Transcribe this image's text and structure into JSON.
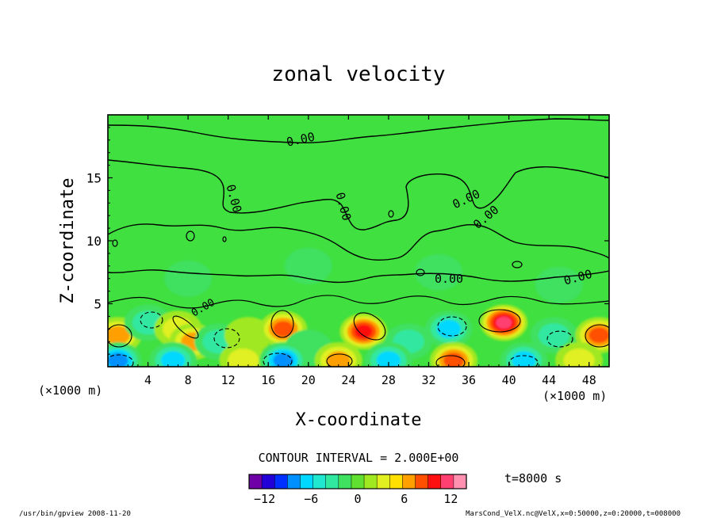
{
  "chart_data": {
    "type": "heatmap",
    "title": "zonal velocity",
    "xlabel": "X-coordinate",
    "ylabel": "Z-coordinate",
    "xunit_left": "(×1000 m)",
    "xunit_right": "(×1000 m)",
    "xlim": [
      0,
      50
    ],
    "ylim": [
      0,
      20
    ],
    "xticks": [
      4,
      8,
      12,
      16,
      20,
      24,
      28,
      32,
      36,
      40,
      44,
      48
    ],
    "yticks": [
      5,
      10,
      15
    ],
    "contour_interval_text": "CONTOUR INTERVAL = 2.000E+00",
    "contour_labels": [
      "0.00",
      "0.00",
      "0.00",
      "0.00",
      "0.00",
      "0.00",
      "0.00",
      "0.00"
    ],
    "time_label": "t=8000 s",
    "colorbar": {
      "min": -14,
      "max": 14,
      "ticks": [
        -12,
        -6,
        0,
        6,
        12
      ],
      "colors": [
        "#6f00a8",
        "#2200d8",
        "#0030ff",
        "#0090ff",
        "#00d8ff",
        "#20e8d0",
        "#30e8a0",
        "#40e060",
        "#60e030",
        "#a0e820",
        "#e0f020",
        "#ffe000",
        "#ffa000",
        "#ff5000",
        "#ff1010",
        "#ff4070",
        "#ff90b0"
      ]
    },
    "features": [
      {
        "x": 1.0,
        "z": 2.5,
        "u": 6
      },
      {
        "x": 4.0,
        "z": 3.5,
        "u": -4
      },
      {
        "x": 7.0,
        "z": 3.0,
        "u": 4
      },
      {
        "x": 8.5,
        "z": 2.0,
        "u": 6
      },
      {
        "x": 11.0,
        "z": 2.0,
        "u": -4
      },
      {
        "x": 14.0,
        "z": 2.5,
        "u": 2
      },
      {
        "x": 17.5,
        "z": 3.0,
        "u": 8
      },
      {
        "x": 20.0,
        "z": 1.5,
        "u": -2
      },
      {
        "x": 25.5,
        "z": 2.8,
        "u": 10
      },
      {
        "x": 30.0,
        "z": 2.0,
        "u": -4
      },
      {
        "x": 34.0,
        "z": 3.0,
        "u": -6
      },
      {
        "x": 39.5,
        "z": 3.5,
        "u": 12
      },
      {
        "x": 44.5,
        "z": 2.5,
        "u": -4
      },
      {
        "x": 49.0,
        "z": 2.5,
        "u": 8
      },
      {
        "x": 1.0,
        "z": 0.5,
        "u": -8
      },
      {
        "x": 6.5,
        "z": 0.5,
        "u": -6
      },
      {
        "x": 13.5,
        "z": 0.5,
        "u": 4
      },
      {
        "x": 17.5,
        "z": 0.5,
        "u": -8
      },
      {
        "x": 23.0,
        "z": 0.5,
        "u": 6
      },
      {
        "x": 28.0,
        "z": 0.5,
        "u": -6
      },
      {
        "x": 34.5,
        "z": 0.5,
        "u": 8
      },
      {
        "x": 41.5,
        "z": 0.5,
        "u": -6
      },
      {
        "x": 47.0,
        "z": 0.5,
        "u": 4
      },
      {
        "x": 8.0,
        "z": 7.0,
        "u": -2
      },
      {
        "x": 20.0,
        "z": 8.0,
        "u": -2
      },
      {
        "x": 33.0,
        "z": 7.5,
        "u": -2
      },
      {
        "x": 45.0,
        "z": 6.5,
        "u": -2
      }
    ]
  },
  "footer": {
    "left": "/usr/bin/gpview  2008-11-20",
    "right": "MarsCond_VelX.nc@VelX,x=0:50000,z=0:20000,t=008000"
  }
}
